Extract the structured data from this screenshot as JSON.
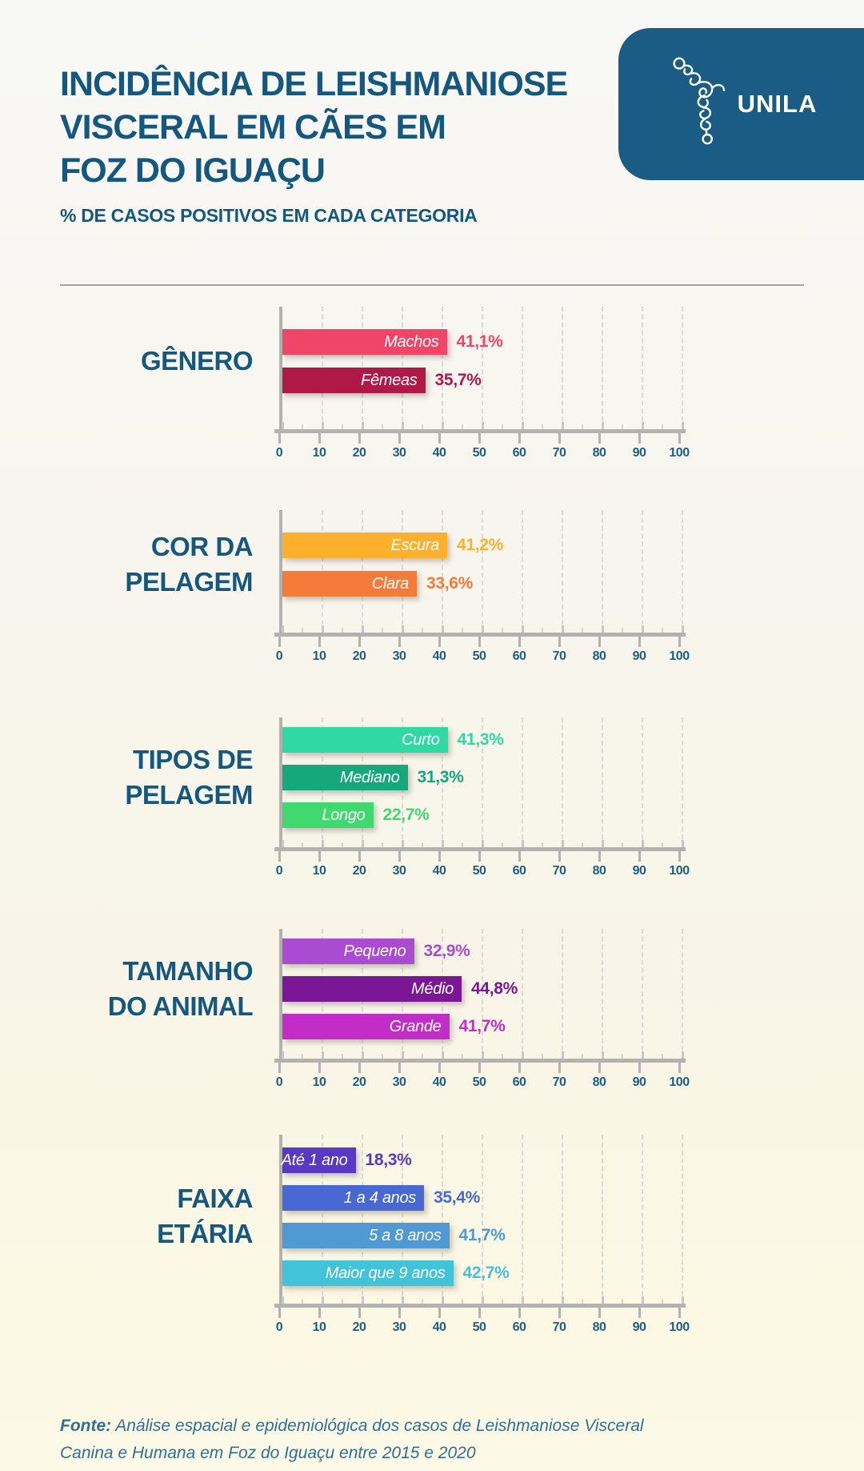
{
  "header": {
    "title_lines": [
      "INCIDÊNCIA DE LEISHMANIOSE",
      "VISCERAL EM CÃES EM",
      "FOZ DO IGUAÇU"
    ],
    "subtitle": "% DE CASOS POSITIVOS EM CADA CATEGORIA",
    "title_color": "#14587F",
    "logo": {
      "text": "UNILA",
      "bg_color": "#1B5C84"
    }
  },
  "chart_data": {
    "type": "bar",
    "orientation": "horizontal",
    "title": "INCIDÊNCIA DE LEISHMANIOSE VISCERAL EM CÃES EM FOZ DO IGUAÇU",
    "subtitle": "% DE CASOS POSITIVOS EM CADA CATEGORIA",
    "unit": "%",
    "xlim": [
      0,
      100
    ],
    "axis": {
      "min": 0,
      "max": 100,
      "tick_step": 10,
      "minor_tick_step": 5,
      "tick_labels": [
        "0",
        "10",
        "20",
        "30",
        "40",
        "50",
        "60",
        "70",
        "80",
        "90",
        "100"
      ],
      "grid": "dashed-vertical",
      "label_color": "#1D5E86",
      "line_color": "#B4B2AF"
    },
    "sections": [
      {
        "title": "GÊNERO",
        "title_lines": [
          "GÊNERO"
        ],
        "bars": [
          {
            "label": "Machos",
            "value": 41.1,
            "value_label": "41,1%",
            "color": "#F14568"
          },
          {
            "label": "Fêmeas",
            "value": 35.7,
            "value_label": "35,7%",
            "color": "#B01848"
          }
        ]
      },
      {
        "title": "COR DA PELAGEM",
        "title_lines": [
          "COR DA",
          "PELAGEM"
        ],
        "bars": [
          {
            "label": "Escura",
            "value": 41.2,
            "value_label": "41,2%",
            "color": "#FCB02B"
          },
          {
            "label": "Clara",
            "value": 33.6,
            "value_label": "33,6%",
            "color": "#F47B39"
          }
        ]
      },
      {
        "title": "TIPOS DE PELAGEM",
        "title_lines": [
          "TIPOS DE",
          "PELAGEM"
        ],
        "bars": [
          {
            "label": "Curto",
            "value": 41.3,
            "value_label": "41,3%",
            "color": "#30D9A4"
          },
          {
            "label": "Mediano",
            "value": 31.3,
            "value_label": "31,3%",
            "color": "#14A87B"
          },
          {
            "label": "Longo",
            "value": 22.7,
            "value_label": "22,7%",
            "color": "#3FD970"
          }
        ]
      },
      {
        "title": "TAMANHO DO ANIMAL",
        "title_lines": [
          "TAMANHO",
          "DO ANIMAL"
        ],
        "bars": [
          {
            "label": "Pequeno",
            "value": 32.9,
            "value_label": "32,9%",
            "color": "#AA4CD2"
          },
          {
            "label": "Médio",
            "value": 44.8,
            "value_label": "44,8%",
            "color": "#7B1696"
          },
          {
            "label": "Grande",
            "value": 41.7,
            "value_label": "41,7%",
            "color": "#C32DC7"
          }
        ]
      },
      {
        "title": "FAIXA ETÁRIA",
        "title_lines": [
          "FAIXA",
          "ETÁRIA"
        ],
        "bars": [
          {
            "label": "Até 1 ano",
            "value": 18.3,
            "value_label": "18,3%",
            "color": "#5938C6"
          },
          {
            "label": "1 a 4 anos",
            "value": 35.4,
            "value_label": "35,4%",
            "color": "#4868D4"
          },
          {
            "label": "5 a 8 anos",
            "value": 41.7,
            "value_label": "41,7%",
            "color": "#4F9AD2"
          },
          {
            "label": "Maior que 9 anos",
            "value": 42.7,
            "value_label": "42,7%",
            "color": "#41C3D9"
          }
        ]
      }
    ]
  },
  "footer": {
    "source_prefix": "Fonte:",
    "lines": [
      "Análise espacial e epidemiológica dos casos de Leishmaniose Visceral",
      "Canina e Humana em Foz do Iguaçu entre 2015 e 2020"
    ]
  }
}
